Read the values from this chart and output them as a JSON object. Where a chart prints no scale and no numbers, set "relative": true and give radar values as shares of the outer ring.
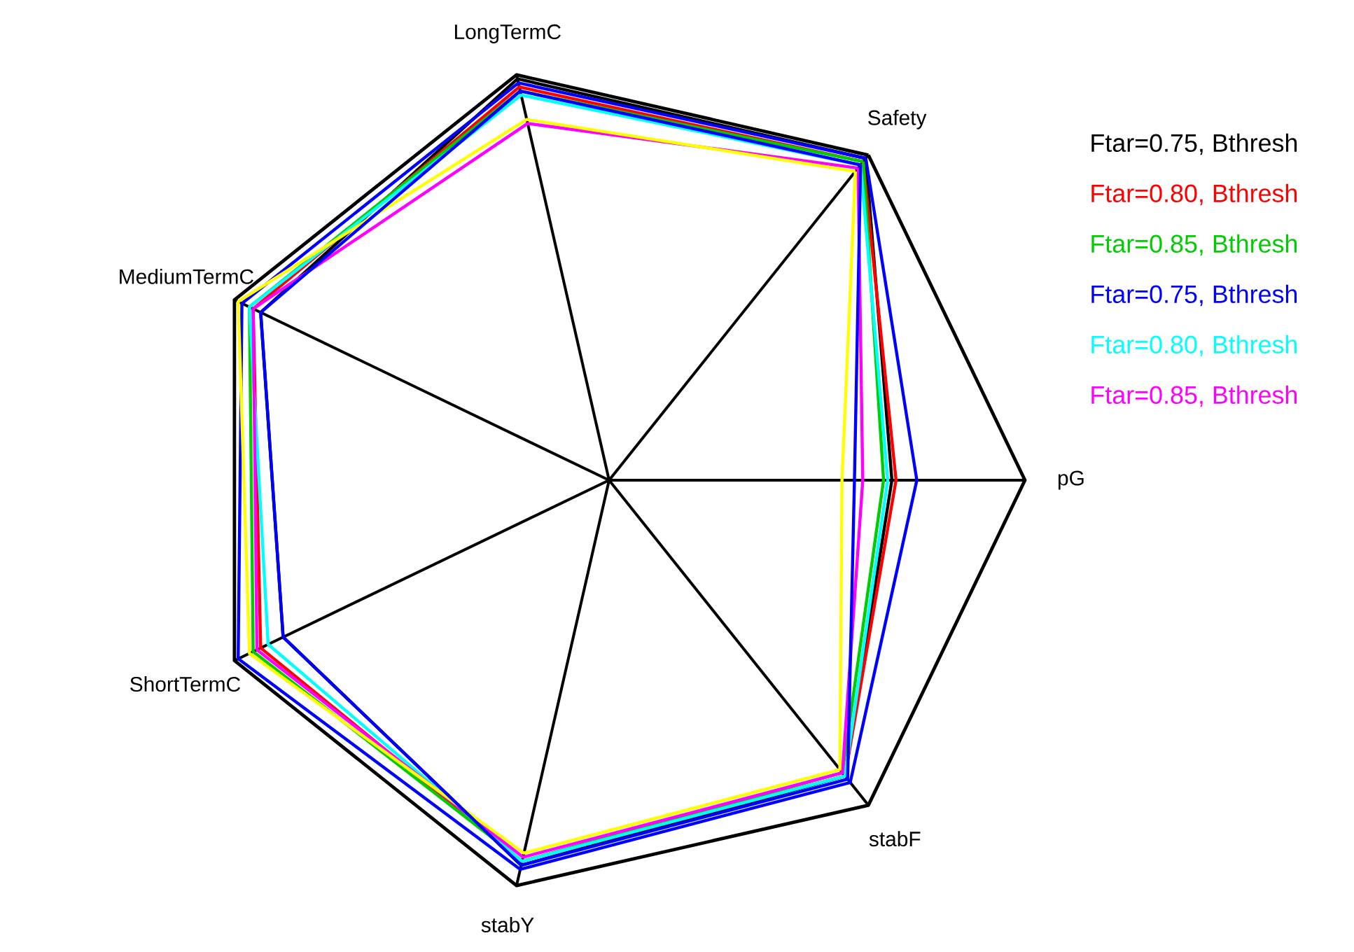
{
  "chart_data": {
    "type": "radar",
    "relative": true,
    "legend": "right",
    "categories": [
      "Safety",
      "pG",
      "stabF",
      "stabY",
      "ShortTermC",
      "MediumTermC",
      "LongTermC"
    ],
    "series": [
      {
        "name": "Ftar=0.75, Bthresh",
        "color": "#000000",
        "values": [
          0.99,
          0.68,
          0.91,
          0.95,
          0.87,
          0.93,
          0.99
        ]
      },
      {
        "name": "Ftar=0.80, Bthresh",
        "color": "#ff0000",
        "values": [
          0.98,
          0.69,
          0.91,
          0.94,
          0.93,
          0.95,
          0.97
        ]
      },
      {
        "name": "Ftar=0.85, Bthresh",
        "color": "#00cd00",
        "values": [
          0.98,
          0.66,
          0.9,
          0.94,
          0.95,
          0.96,
          0.96
        ]
      },
      {
        "name": "Ftar=0.75, Bthresh",
        "color": "#0000ff",
        "values": [
          0.99,
          0.74,
          0.93,
          0.96,
          0.99,
          0.98,
          0.98
        ]
      },
      {
        "name": "Ftar=0.80, Bthresh",
        "color": "#00ffff",
        "values": [
          0.97,
          0.67,
          0.91,
          0.94,
          0.91,
          0.96,
          0.95
        ]
      },
      {
        "name": "Ftar=0.85, Bthresh",
        "color": "#ff00ff",
        "values": [
          0.96,
          0.61,
          0.9,
          0.93,
          0.94,
          0.95,
          0.88
        ]
      },
      {
        "color": "#ffff00",
        "values": [
          0.95,
          0.56,
          0.89,
          0.92,
          0.96,
          0.99,
          0.89
        ]
      },
      {
        "color": "#0000ff",
        "values": [
          0.97,
          0.59,
          0.92,
          0.95,
          0.87,
          0.93,
          0.96
        ]
      }
    ]
  }
}
